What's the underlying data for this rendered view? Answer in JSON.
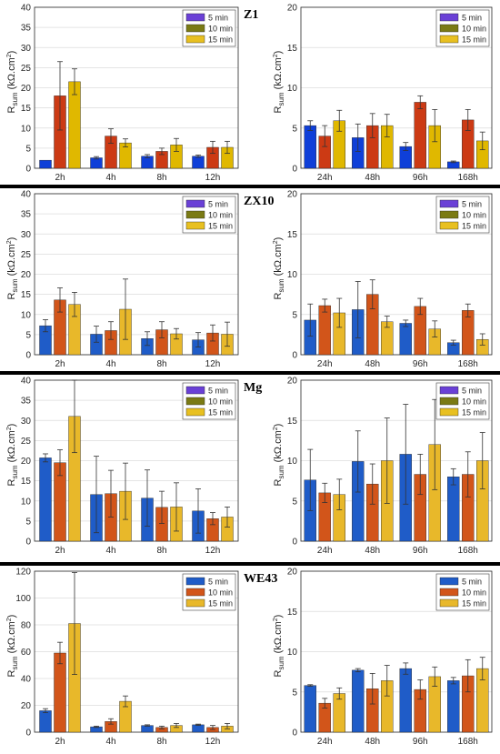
{
  "chart_data": [
    {
      "title": "Z1",
      "type": "bar",
      "ylabel": "R_sum (kΩ.cm²)",
      "left": {
        "categories": [
          "2h",
          "4h",
          "8h",
          "12h"
        ],
        "ylim": [
          0,
          40
        ],
        "yticks": [
          0,
          5,
          10,
          15,
          20,
          25,
          30,
          35,
          40
        ],
        "series": [
          {
            "name": "5 min",
            "values": [
              2,
              2.6,
              3,
              3
            ],
            "errors": [
              0,
              0.3,
              0.4,
              0.3
            ]
          },
          {
            "name": "10 min",
            "values": [
              18,
              8,
              4.2,
              5.2
            ],
            "errors": [
              8.5,
              1.8,
              0.8,
              1.5
            ]
          },
          {
            "name": "15 min",
            "values": [
              21.5,
              6.3,
              5.8,
              5.2
            ],
            "errors": [
              3.2,
              1,
              1.6,
              1.5
            ]
          }
        ]
      },
      "right": {
        "categories": [
          "24h",
          "48h",
          "96h",
          "168h"
        ],
        "ylim": [
          0,
          20
        ],
        "yticks": [
          0,
          5,
          10,
          15,
          20
        ],
        "series": [
          {
            "name": "5 min",
            "values": [
              5.3,
              3.8,
              2.7,
              0.8
            ],
            "errors": [
              0.6,
              1.7,
              0.5,
              0.1
            ]
          },
          {
            "name": "10 min",
            "values": [
              4,
              5.3,
              8.2,
              6
            ],
            "errors": [
              1.3,
              1.5,
              0.8,
              1.3
            ]
          },
          {
            "name": "15 min",
            "values": [
              5.9,
              5.3,
              5.3,
              3.4
            ],
            "errors": [
              1.3,
              1.4,
              2,
              1.1
            ]
          }
        ]
      }
    },
    {
      "title": "ZX10",
      "type": "bar",
      "ylabel": "R_sum (kΩ.cm²)",
      "left": {
        "categories": [
          "2h",
          "4h",
          "8h",
          "12h"
        ],
        "ylim": [
          0,
          40
        ],
        "yticks": [
          0,
          5,
          10,
          15,
          20,
          25,
          30,
          35,
          40
        ],
        "series": [
          {
            "name": "5 min",
            "values": [
              7.2,
              5.1,
              4,
              3.7
            ],
            "errors": [
              1.5,
              2,
              1.7,
              1.8
            ]
          },
          {
            "name": "10 min",
            "values": [
              13.6,
              6,
              6.2,
              5.4
            ],
            "errors": [
              3,
              2.2,
              2,
              2
            ]
          },
          {
            "name": "15 min",
            "values": [
              12.5,
              11.3,
              5.2,
              5.1
            ],
            "errors": [
              3,
              7.5,
              1.3,
              3
            ]
          }
        ]
      },
      "right": {
        "categories": [
          "24h",
          "48h",
          "96h",
          "168h"
        ],
        "ylim": [
          0,
          20
        ],
        "yticks": [
          0,
          5,
          10,
          15,
          20
        ],
        "series": [
          {
            "name": "5 min",
            "values": [
              4.3,
              5.6,
              3.9,
              1.5
            ],
            "errors": [
              2,
              3.5,
              0.4,
              0.3
            ]
          },
          {
            "name": "10 min",
            "values": [
              6.1,
              7.5,
              6,
              5.5
            ],
            "errors": [
              0.8,
              1.8,
              1,
              0.8
            ]
          },
          {
            "name": "15 min",
            "values": [
              5.2,
              4.1,
              3.2,
              1.9
            ],
            "errors": [
              1.8,
              0.7,
              1,
              0.7
            ]
          }
        ]
      }
    },
    {
      "title": "Mg",
      "type": "bar",
      "ylabel": "R_sum (kΩ.cm²)",
      "left": {
        "categories": [
          "2h",
          "4h",
          "8h",
          "12h"
        ],
        "ylim": [
          0,
          40
        ],
        "yticks": [
          0,
          5,
          10,
          15,
          20,
          25,
          30,
          35,
          40
        ],
        "series": [
          {
            "name": "5 min",
            "values": [
              20.7,
              11.6,
              10.7,
              7.5
            ],
            "errors": [
              1,
              9.5,
              7,
              5.5
            ]
          },
          {
            "name": "10 min",
            "values": [
              19.5,
              11.8,
              8.4,
              5.6
            ],
            "errors": [
              3.2,
              5.8,
              4,
              1.5
            ]
          },
          {
            "name": "15 min",
            "values": [
              31,
              12.4,
              8.5,
              6
            ],
            "errors": [
              9,
              7,
              6,
              2.5
            ]
          }
        ]
      },
      "right": {
        "categories": [
          "24h",
          "48h",
          "96h",
          "168h"
        ],
        "ylim": [
          0,
          20
        ],
        "yticks": [
          0,
          5,
          10,
          15,
          20
        ],
        "series": [
          {
            "name": "5 min",
            "values": [
              7.6,
              9.9,
              10.8,
              8
            ],
            "errors": [
              3.8,
              3.8,
              6.2,
              1
            ]
          },
          {
            "name": "10 min",
            "values": [
              6,
              7.1,
              8.3,
              8.3
            ],
            "errors": [
              1.2,
              2.5,
              2.5,
              2.8
            ]
          },
          {
            "name": "15 min",
            "values": [
              5.8,
              10,
              12,
              10
            ],
            "errors": [
              1.9,
              5.3,
              5.6,
              3.5
            ]
          }
        ]
      }
    },
    {
      "title": "WE43",
      "type": "bar",
      "ylabel": "R_sum (kΩ.cm²)",
      "left": {
        "categories": [
          "2h",
          "4h",
          "8h",
          "12h"
        ],
        "ylim": [
          0,
          120
        ],
        "yticks": [
          0,
          20,
          40,
          60,
          80,
          100,
          120
        ],
        "series": [
          {
            "name": "5 min",
            "values": [
              16,
              4,
              5,
              5.5
            ],
            "errors": [
              1.5,
              0.5,
              0.5,
              0.5
            ]
          },
          {
            "name": "10 min",
            "values": [
              59,
              8,
              3.5,
              3.5
            ],
            "errors": [
              8,
              2,
              1,
              1.5
            ]
          },
          {
            "name": "15 min",
            "values": [
              81,
              23,
              5,
              4.5
            ],
            "errors": [
              38,
              4,
              1.5,
              2
            ]
          }
        ]
      },
      "right": {
        "categories": [
          "24h",
          "48h",
          "96h",
          "168h"
        ],
        "ylim": [
          0,
          20
        ],
        "yticks": [
          0,
          5,
          10,
          15,
          20
        ],
        "series": [
          {
            "name": "5 min",
            "values": [
              5.8,
              7.7,
              7.9,
              6.4
            ],
            "errors": [
              0.1,
              0.2,
              0.7,
              0.4
            ]
          },
          {
            "name": "10 min",
            "values": [
              3.6,
              5.4,
              5.3,
              7
            ],
            "errors": [
              0.6,
              1.9,
              1.2,
              2
            ]
          },
          {
            "name": "15 min",
            "values": [
              4.8,
              6.4,
              6.9,
              7.9
            ],
            "errors": [
              0.7,
              1.9,
              1.2,
              1.4
            ]
          }
        ]
      }
    }
  ],
  "colors": {
    "z_panels": [
      "#0f3fd8",
      "#cc3a14",
      "#e0b800"
    ],
    "later_panels": [
      "#1f5cc8",
      "#d2551a",
      "#e8b82a"
    ],
    "legend_early": [
      "#6a40d6",
      "#7a7a14",
      "#e8c020"
    ],
    "legend_late": [
      "#1f5cc8",
      "#d2551a",
      "#e8b82a"
    ],
    "error_bar": "#333333",
    "grid": "#dcdcdc",
    "separator": "#000000"
  }
}
